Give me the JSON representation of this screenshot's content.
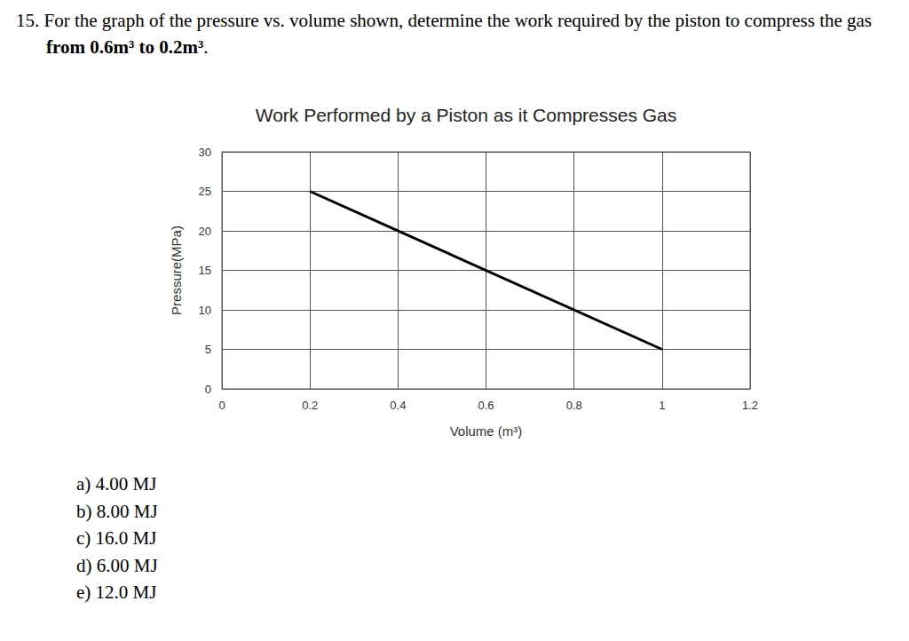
{
  "question": {
    "number": "15.",
    "text": "For the graph of the pressure vs. volume shown, determine the work required by the piston to compress the gas",
    "bold": "from 0.6m³ to 0.2m³",
    "end": "."
  },
  "chart_data": {
    "type": "line",
    "title": "Work Performed by a Piston as it Compresses Gas",
    "x_label": "Volume (m³)",
    "y_label": "Pressure(MPa)",
    "x": [
      0.2,
      1
    ],
    "values": [
      25,
      5
    ],
    "color": "#000000",
    "marker": "none",
    "xlim": [
      0,
      1.2
    ],
    "xticks": [
      0,
      0.2,
      0.4,
      0.6,
      0.8,
      1,
      1.2
    ],
    "ylim": [
      0,
      30
    ],
    "yticks": [
      0,
      5,
      10,
      15,
      20,
      25,
      30
    ],
    "grid": true
  },
  "choices": [
    "a) 4.00 MJ",
    "b) 8.00 MJ",
    "c) 16.0 MJ",
    "d) 6.00 MJ",
    "e) 12.0 MJ"
  ]
}
